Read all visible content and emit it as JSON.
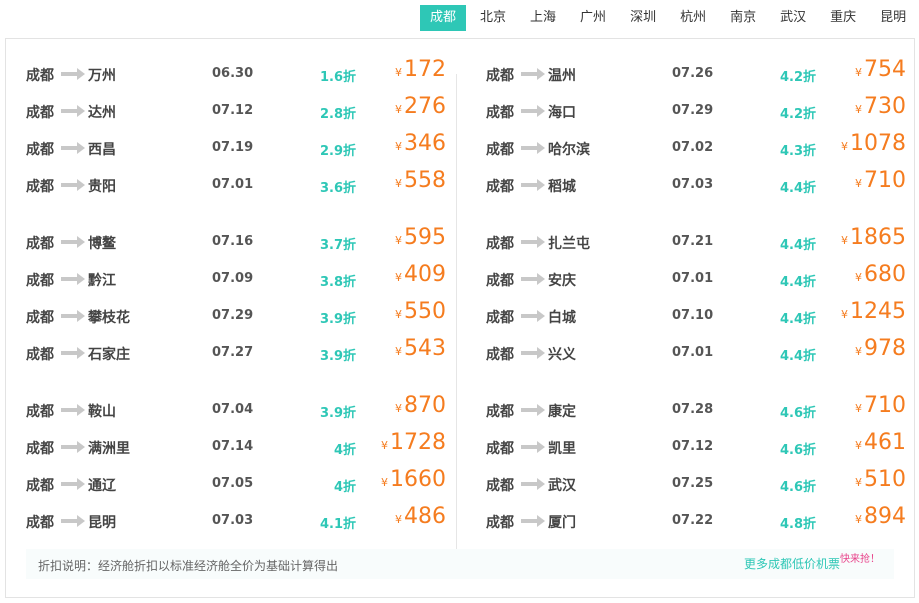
{
  "colors": {
    "accent": "#2ec7b6",
    "price": "#f57c1f",
    "hot": "#e8468c"
  },
  "tabs": [
    "成都",
    "北京",
    "上海",
    "广州",
    "深圳",
    "杭州",
    "南京",
    "武汉",
    "重庆",
    "昆明"
  ],
  "active_tab": "成都",
  "left_groups": [
    [
      {
        "from": "成都",
        "to": "万州",
        "date": "06.30",
        "discount": "1.6折",
        "price": "172"
      },
      {
        "from": "成都",
        "to": "达州",
        "date": "07.12",
        "discount": "2.8折",
        "price": "276"
      },
      {
        "from": "成都",
        "to": "西昌",
        "date": "07.19",
        "discount": "2.9折",
        "price": "346"
      },
      {
        "from": "成都",
        "to": "贵阳",
        "date": "07.01",
        "discount": "3.6折",
        "price": "558"
      }
    ],
    [
      {
        "from": "成都",
        "to": "博鳌",
        "date": "07.16",
        "discount": "3.7折",
        "price": "595"
      },
      {
        "from": "成都",
        "to": "黔江",
        "date": "07.09",
        "discount": "3.8折",
        "price": "409"
      },
      {
        "from": "成都",
        "to": "攀枝花",
        "date": "07.29",
        "discount": "3.9折",
        "price": "550"
      },
      {
        "from": "成都",
        "to": "石家庄",
        "date": "07.27",
        "discount": "3.9折",
        "price": "543"
      }
    ],
    [
      {
        "from": "成都",
        "to": "鞍山",
        "date": "07.04",
        "discount": "3.9折",
        "price": "870"
      },
      {
        "from": "成都",
        "to": "满洲里",
        "date": "07.14",
        "discount": "4折",
        "price": "1728"
      },
      {
        "from": "成都",
        "to": "通辽",
        "date": "07.05",
        "discount": "4折",
        "price": "1660"
      },
      {
        "from": "成都",
        "to": "昆明",
        "date": "07.03",
        "discount": "4.1折",
        "price": "486"
      }
    ]
  ],
  "right_groups": [
    [
      {
        "from": "成都",
        "to": "温州",
        "date": "07.26",
        "discount": "4.2折",
        "price": "754"
      },
      {
        "from": "成都",
        "to": "海口",
        "date": "07.29",
        "discount": "4.2折",
        "price": "730"
      },
      {
        "from": "成都",
        "to": "哈尔滨",
        "date": "07.02",
        "discount": "4.3折",
        "price": "1078"
      },
      {
        "from": "成都",
        "to": "稻城",
        "date": "07.03",
        "discount": "4.4折",
        "price": "710"
      }
    ],
    [
      {
        "from": "成都",
        "to": "扎兰屯",
        "date": "07.21",
        "discount": "4.4折",
        "price": "1865"
      },
      {
        "from": "成都",
        "to": "安庆",
        "date": "07.01",
        "discount": "4.4折",
        "price": "680"
      },
      {
        "from": "成都",
        "to": "白城",
        "date": "07.10",
        "discount": "4.4折",
        "price": "1245"
      },
      {
        "from": "成都",
        "to": "兴义",
        "date": "07.01",
        "discount": "4.4折",
        "price": "978"
      }
    ],
    [
      {
        "from": "成都",
        "to": "康定",
        "date": "07.28",
        "discount": "4.6折",
        "price": "710"
      },
      {
        "from": "成都",
        "to": "凯里",
        "date": "07.12",
        "discount": "4.6折",
        "price": "461"
      },
      {
        "from": "成都",
        "to": "武汉",
        "date": "07.25",
        "discount": "4.6折",
        "price": "510"
      },
      {
        "from": "成都",
        "to": "厦门",
        "date": "07.22",
        "discount": "4.8折",
        "price": "894"
      }
    ]
  ],
  "currency_symbol": "¥",
  "note": {
    "text": "折扣说明：经济舱折扣以标准经济舱全价为基础计算得出",
    "more_link": "更多成都低价机票",
    "hot_tag": "快来抢！"
  }
}
